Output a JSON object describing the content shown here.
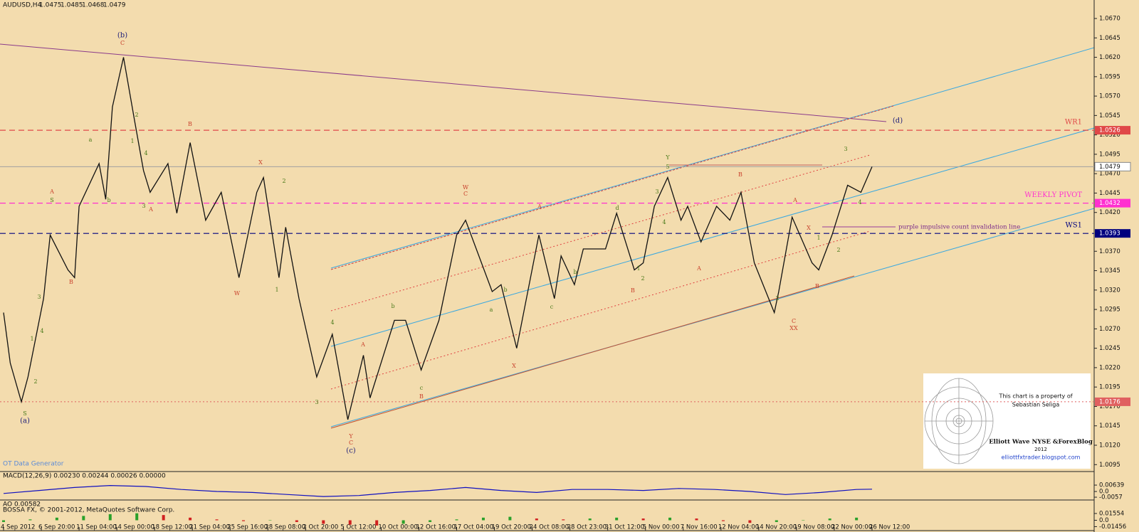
{
  "chart_data": {
    "type": "line",
    "symbol": "AUDUSD,H4",
    "ohlc": [
      1.0475,
      1.0485,
      1.0468,
      1.0479
    ],
    "color": "#111111",
    "x": [
      0,
      3,
      8,
      11,
      18,
      21,
      29,
      32,
      34,
      43,
      46,
      49,
      54,
      59,
      63,
      66,
      74,
      78,
      84,
      91,
      98,
      106,
      114,
      117,
      124,
      127,
      133,
      141,
      148,
      155,
      162,
      165,
      176,
      181,
      188,
      196,
      204,
      208,
      220,
      224,
      231,
      241,
      248,
      251,
      257,
      261,
      271,
      276,
      284,
      288,
      293,
      299,
      305,
      308,
      314,
      321,
      327,
      332,
      338,
      347,
      349,
      355,
      364,
      367,
      373,
      380,
      386,
      391
    ],
    "values": [
      1.0291,
      1.0226,
      1.0176,
      1.0208,
      1.0309,
      1.0391,
      1.0346,
      1.0336,
      1.0428,
      1.0483,
      1.0437,
      1.0556,
      1.062,
      1.0538,
      1.0474,
      1.0446,
      1.0483,
      1.0419,
      1.051,
      1.041,
      1.0446,
      1.0336,
      1.0446,
      1.0465,
      1.0336,
      1.0401,
      1.0309,
      1.0208,
      1.0263,
      1.0153,
      1.0236,
      1.0181,
      1.0281,
      1.0281,
      1.0217,
      1.0281,
      1.0391,
      1.041,
      1.0318,
      1.0327,
      1.0245,
      1.0391,
      1.0309,
      1.0364,
      1.0327,
      1.0373,
      1.0373,
      1.0419,
      1.0346,
      1.0355,
      1.0428,
      1.0465,
      1.041,
      1.0428,
      1.0382,
      1.0428,
      1.041,
      1.0446,
      1.0355,
      1.0291,
      1.0318,
      1.0414,
      1.0355,
      1.0346,
      1.0391,
      1.0455,
      1.0446,
      1.0479
    ],
    "xlim": [
      0,
      491
    ],
    "xticks": [
      {
        "value": 0,
        "label": "4 Sep 2012"
      },
      {
        "value": 17,
        "label": "6 Sep 20:00"
      },
      {
        "value": 34,
        "label": "11 Sep 04:00"
      },
      {
        "value": 51,
        "label": "14 Sep 00:00"
      },
      {
        "value": 68,
        "label": "18 Sep 12:00"
      },
      {
        "value": 85,
        "label": "21 Sep 04:00"
      },
      {
        "value": 102,
        "label": "25 Sep 16:00"
      },
      {
        "value": 119,
        "label": "28 Sep 08:00"
      },
      {
        "value": 136,
        "label": "2 Oct 20:00"
      },
      {
        "value": 153,
        "label": "5 Oct 12:00"
      },
      {
        "value": 170,
        "label": "10 Oct 00:00"
      },
      {
        "value": 187,
        "label": "12 Oct 16:00"
      },
      {
        "value": 204,
        "label": "17 Oct 04:00"
      },
      {
        "value": 221,
        "label": "19 Oct 20:00"
      },
      {
        "value": 238,
        "label": "24 Oct 08:00"
      },
      {
        "value": 255,
        "label": "28 Oct 23:00"
      },
      {
        "value": 272,
        "label": "31 Oct 12:00"
      },
      {
        "value": 289,
        "label": "5 Nov 00:00"
      },
      {
        "value": 306,
        "label": "7 Nov 16:00"
      },
      {
        "value": 323,
        "label": "12 Nov 04:00"
      },
      {
        "value": 340,
        "label": "14 Nov 20:00"
      },
      {
        "value": 357,
        "label": "19 Nov 08:00"
      },
      {
        "value": 374,
        "label": "22 Nov 00:00"
      },
      {
        "value": 391,
        "label": "26 Nov 12:00"
      }
    ],
    "ylim": [
      1.0087,
      1.0681
    ],
    "yticks": [
      {
        "value": 1.067,
        "label": "1.0670"
      },
      1.0645,
      {
        "value": 1.062,
        "label": "1.0620"
      },
      1.0595,
      {
        "value": 1.057,
        "label": "1.0570"
      },
      1.0545,
      {
        "value": 1.052,
        "label": "1.0520"
      },
      1.0495,
      {
        "value": 1.047,
        "label": "1.0470"
      },
      1.0445,
      {
        "value": 1.042,
        "label": "1.0420"
      },
      {
        "value": 1.037,
        "label": "1.0370"
      },
      1.0345,
      {
        "value": 1.032,
        "label": "1.0320"
      },
      1.0295,
      {
        "value": 1.027,
        "label": "1.0270"
      },
      1.0245,
      {
        "value": 1.022,
        "label": "1.0220"
      },
      1.0195,
      {
        "value": 1.017,
        "label": "1.0170"
      },
      1.0145,
      {
        "value": 1.012,
        "label": "1.0120"
      },
      1.0095
    ],
    "levels": [
      {
        "name": "WR1",
        "value": 1.0526,
        "color": "#e04848"
      },
      {
        "name": "WEEKLY PIVOT",
        "value": 1.0432,
        "color": "#ff30d0"
      },
      {
        "name": "WS1",
        "value": 1.0393,
        "color": "#00007f"
      },
      {
        "value": 1.0176,
        "color": "#e06060"
      }
    ],
    "annotations": [
      {
        "text": "(b)",
        "color": "#20207a"
      },
      {
        "text": "C",
        "color": "#c8402c"
      },
      {
        "text": "(a)",
        "color": "#20207a"
      },
      {
        "text": "(c)",
        "color": "#20207a"
      },
      {
        "text": "C",
        "color": "#c8402c"
      },
      {
        "text": "Y",
        "color": "#c8402c"
      },
      {
        "text": "(d)",
        "color": "#20207a"
      },
      {
        "text": "A",
        "color": "#c8402c"
      },
      {
        "text": "B",
        "color": "#c8402c"
      },
      {
        "text": "B",
        "color": "#c8402c"
      },
      {
        "text": "A",
        "color": "#c8402c"
      },
      {
        "text": "W",
        "color": "#c8402c"
      },
      {
        "text": "X",
        "color": "#c8402c"
      },
      {
        "text": "W",
        "color": "#c8402c"
      },
      {
        "text": "C",
        "color": "#c8402c"
      },
      {
        "text": "X",
        "color": "#c8402c"
      },
      {
        "text": "A",
        "color": "#c8402c"
      },
      {
        "text": "B",
        "color": "#c8402c"
      },
      {
        "text": "A",
        "color": "#c8402c"
      },
      {
        "text": "C",
        "color": "#c8402c"
      },
      {
        "text": "XX",
        "color": "#c8402c"
      },
      {
        "text": "B",
        "color": "#c8402c"
      },
      {
        "text": "A",
        "color": "#c8402c"
      },
      {
        "text": "B",
        "color": "#c8402c"
      },
      {
        "text": "A",
        "color": "#c8402c"
      },
      {
        "text": "X",
        "color": "#c8402c"
      },
      {
        "text": "B",
        "color": "#c8402c"
      },
      {
        "text": "Y",
        "color": "#4a7a1a"
      },
      {
        "text": "S",
        "color": "#4a7a1a"
      },
      {
        "text": "S",
        "color": "#4a7a1a"
      },
      {
        "text": "1",
        "color": "#4a7a1a"
      },
      {
        "text": "2",
        "color": "#4a7a1a"
      },
      {
        "text": "3",
        "color": "#4a7a1a"
      },
      {
        "text": "4",
        "color": "#4a7a1a"
      },
      {
        "text": "a",
        "color": "#4a7a1a"
      },
      {
        "text": "b",
        "color": "#4a7a1a"
      },
      {
        "text": "1",
        "color": "#4a7a1a"
      },
      {
        "text": "2",
        "color": "#4a7a1a"
      },
      {
        "text": "3",
        "color": "#4a7a1a"
      },
      {
        "text": "4",
        "color": "#4a7a1a"
      },
      {
        "text": "1",
        "color": "#4a7a1a"
      },
      {
        "text": "2",
        "color": "#4a7a1a"
      },
      {
        "text": "3",
        "color": "#4a7a1a"
      },
      {
        "text": "4",
        "color": "#4a7a1a"
      },
      {
        "text": "b",
        "color": "#4a7a1a"
      },
      {
        "text": "c",
        "color": "#4a7a1a"
      },
      {
        "text": "a",
        "color": "#4a7a1a"
      },
      {
        "text": "b",
        "color": "#4a7a1a"
      },
      {
        "text": "c",
        "color": "#4a7a1a"
      },
      {
        "text": "b",
        "color": "#4a7a1a"
      },
      {
        "text": "d",
        "color": "#4a7a1a"
      },
      {
        "text": "1",
        "color": "#4a7a1a"
      },
      {
        "text": "2",
        "color": "#4a7a1a"
      },
      {
        "text": "3",
        "color": "#4a7a1a"
      },
      {
        "text": "4",
        "color": "#4a7a1a"
      },
      {
        "text": "5",
        "color": "#4a7a1a"
      },
      {
        "text": "1",
        "color": "#4a7a1a"
      },
      {
        "text": "2",
        "color": "#4a7a1a"
      },
      {
        "text": "3",
        "color": "#4a7a1a"
      },
      {
        "text": "4",
        "color": "#4a7a1a"
      },
      {
        "text": "2",
        "color": "#4a7a1a"
      },
      {
        "text": "purple impulsive count invalidation line",
        "color": "#7a2a8a"
      }
    ],
    "generator": "OT Data Generator",
    "macd": {
      "title": "MACD(12,26,9) 0.00230 0.00244 0.00026 0.00000",
      "color": "#1010c0",
      "x": [
        0,
        16,
        32,
        48,
        64,
        80,
        96,
        112,
        128,
        144,
        160,
        176,
        192,
        208,
        224,
        240,
        256,
        272,
        288,
        304,
        320,
        336,
        352,
        368,
        384,
        391
      ],
      "values": [
        -0.002,
        0.001,
        0.004,
        0.006,
        0.005,
        0.002,
        0.0,
        -0.001,
        -0.003,
        -0.005,
        -0.004,
        -0.001,
        0.001,
        0.004,
        0.001,
        -0.001,
        0.002,
        0.002,
        0.001,
        0.003,
        0.002,
        0.0,
        -0.003,
        -0.001,
        0.002,
        0.0023
      ],
      "ylim": [
        -0.0078,
        0.0107
      ],
      "yticks": [
        0.00639,
        {
          "value": 0,
          "label": "0.0"
        },
        -0.0057
      ]
    },
    "ao": {
      "title": "AO 0.00582",
      "x": [
        0,
        12,
        24,
        36,
        48,
        60,
        72,
        84,
        96,
        108,
        120,
        132,
        144,
        156,
        168,
        180,
        192,
        204,
        216,
        228,
        240,
        252,
        264,
        276,
        288,
        300,
        312,
        324,
        336,
        348,
        360,
        372,
        384
      ],
      "values": [
        -0.004,
        0.002,
        0.006,
        0.01,
        0.014,
        0.016,
        0.012,
        0.006,
        0.002,
        -0.002,
        0.0,
        -0.004,
        -0.008,
        -0.01,
        -0.012,
        -0.008,
        -0.004,
        0.002,
        0.006,
        0.008,
        0.004,
        0.002,
        0.004,
        0.006,
        0.004,
        0.006,
        0.004,
        -0.002,
        -0.006,
        -0.004,
        0.0,
        0.004,
        0.006
      ],
      "ylim": [
        -0.022,
        0.022
      ],
      "yticks": [
        0.01554,
        {
          "value": 0,
          "label": "0.0"
        },
        -0.01456
      ]
    },
    "copyright": "BOSSA FX, © 2001-2012, MetaQuotes Software Corp.",
    "watermark": {
      "line1": "This chart is a property of",
      "line2": "Sebastian Seliga",
      "blog": "Elliott Wave NYSE &ForexBlog",
      "year": "2012",
      "url": "elliottfxtrader.blogspot.com"
    }
  }
}
